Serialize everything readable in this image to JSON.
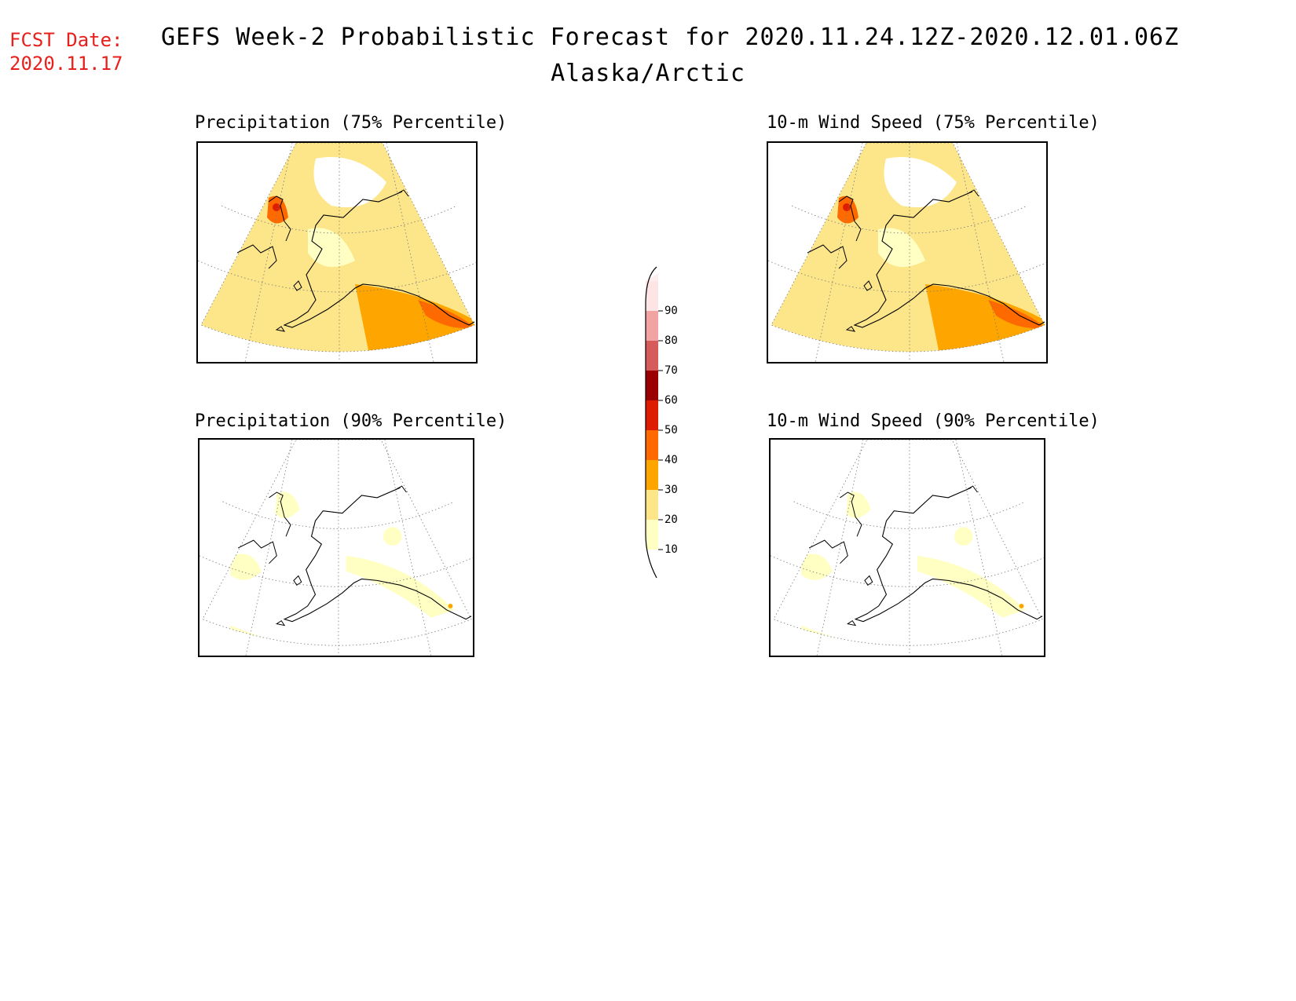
{
  "header": {
    "fcst_label": "FCST Date:",
    "fcst_date": "2020.11.17",
    "title": "GEFS Week-2 Probabilistic Forecast for 2020.11.24.12Z-2020.12.01.06Z",
    "subtitle": "Alaska/Arctic"
  },
  "panels": [
    {
      "title": "Precipitation (75% Percentile)",
      "intensity": "high"
    },
    {
      "title": "10-m Wind Speed (75% Percentile)",
      "intensity": "high"
    },
    {
      "title": "Precipitation (90% Percentile)",
      "intensity": "low"
    },
    {
      "title": "10-m Wind Speed (90% Percentile)",
      "intensity": "low"
    }
  ],
  "colorbar": {
    "levels": [
      "10",
      "20",
      "30",
      "40",
      "50",
      "60",
      "70",
      "80",
      "90"
    ],
    "colors": [
      "#ffffc4",
      "#fde68a",
      "#ffa500",
      "#ff6a00",
      "#dd1c00",
      "#9b0000",
      "#d65c5c",
      "#f2a3a3",
      "#fde5e5"
    ]
  }
}
